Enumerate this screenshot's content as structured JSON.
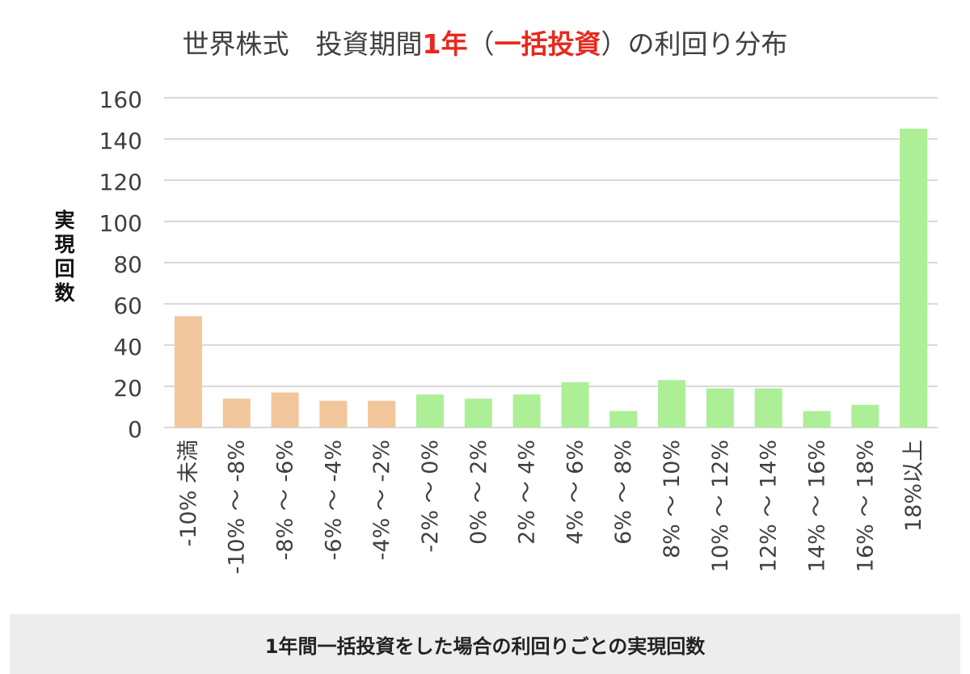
{
  "title": {
    "part1": "世界株式　投資期間",
    "part2": "1年",
    "part3": "（",
    "part4": "一括投資",
    "part5": "）の利回り分布"
  },
  "colors": {
    "negative": "#f2c69b",
    "positive": "#acef96",
    "highlight": "#e8281e",
    "grid": "#d9d9d9"
  },
  "chart_data": {
    "type": "bar",
    "title": "世界株式　投資期間1年（一括投資）の利回り分布",
    "xlabel": "",
    "ylabel": "実現回数",
    "ylim": [
      0,
      160
    ],
    "yticks": [
      0,
      20,
      40,
      60,
      80,
      100,
      120,
      140,
      160
    ],
    "grid": true,
    "categories": [
      "-10% 未満",
      "-10% ～ -8%",
      "-8% ～ -6%",
      "-6% ～ -4%",
      "-4% ～ -2%",
      "-2% ～ 0%",
      "0% ～ 2%",
      "2% ～ 4%",
      "4% ～ 6%",
      "6% ～ 8%",
      "8% ～ 10%",
      "10% ～ 12%",
      "12% ～ 14%",
      "14% ～ 16%",
      "16% ～ 18%",
      "18%以上"
    ],
    "values": [
      54,
      14,
      17,
      13,
      13,
      16,
      14,
      16,
      22,
      8,
      23,
      19,
      19,
      8,
      11,
      145
    ],
    "bar_colors": [
      "#f2c69b",
      "#f2c69b",
      "#f2c69b",
      "#f2c69b",
      "#f2c69b",
      "#acef96",
      "#acef96",
      "#acef96",
      "#acef96",
      "#acef96",
      "#acef96",
      "#acef96",
      "#acef96",
      "#acef96",
      "#acef96",
      "#acef96"
    ]
  },
  "caption": "1年間一括投資をした場合の利回りごとの実現回数"
}
